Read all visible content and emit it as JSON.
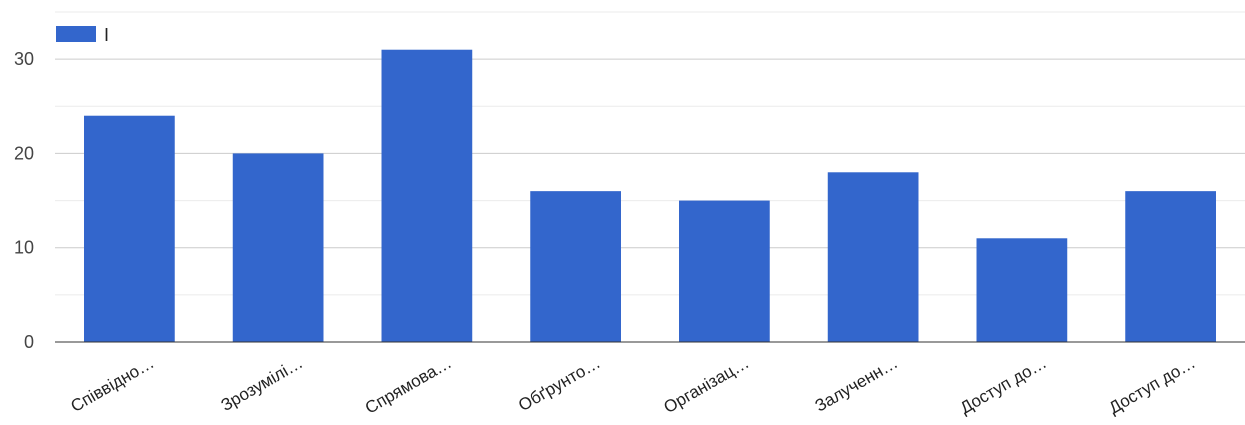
{
  "chart_data": {
    "type": "bar",
    "categories": [
      "Співвідно…",
      "Зрозумілі…",
      "Спрямова…",
      "Обґрунто…",
      "Організац…",
      "Залученн…",
      "Доступ до…",
      "Доступ до…"
    ],
    "series": [
      {
        "name": "I",
        "values": [
          24,
          20,
          31,
          16,
          15,
          18,
          11,
          16
        ]
      }
    ],
    "y_ticks": [
      0,
      10,
      20,
      30
    ],
    "ylim": [
      0,
      35
    ],
    "grid": true,
    "legend": "top-left",
    "colors": {
      "bar": "#3366cc",
      "grid_major": "#cccccc",
      "grid_minor": "#ebebeb",
      "axis": "#333333"
    }
  }
}
